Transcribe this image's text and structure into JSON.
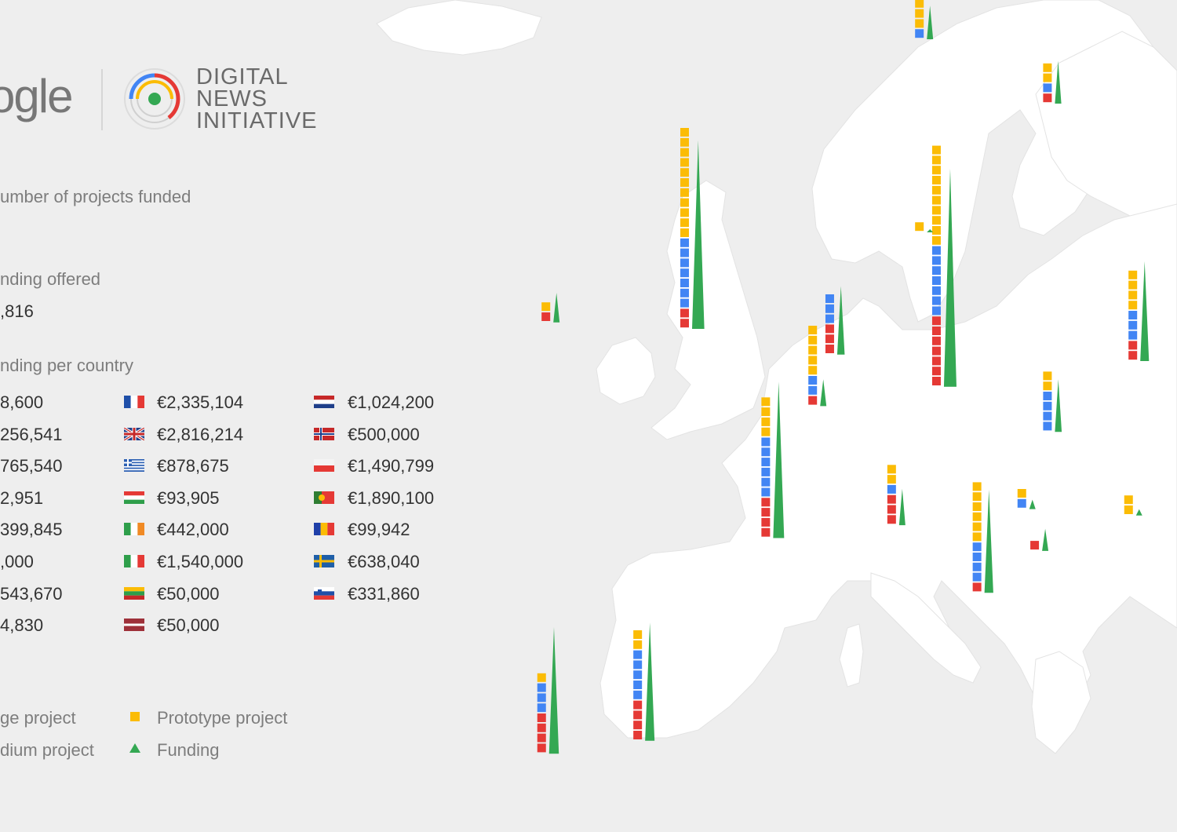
{
  "header": {
    "google_partial": "ogle",
    "dni_lines": [
      "DIGITAL",
      "NEWS",
      "INITIATIVE"
    ]
  },
  "labels": {
    "projects_funded": "umber of projects funded",
    "funding_offered": "nding offered",
    "funding_total_partial": ",816",
    "funding_per_country": "nding per country"
  },
  "left_column_partial": [
    "8,600",
    "256,541",
    "765,540",
    "2,951",
    "399,845",
    ",000",
    "543,670",
    "4,830"
  ],
  "countries": [
    {
      "flag": "france-flag",
      "amount": "€2,335,104",
      "col": 1,
      "row": 0
    },
    {
      "flag": "uk-flag",
      "amount": "€2,816,214",
      "col": 1,
      "row": 1
    },
    {
      "flag": "greece-flag",
      "amount": "€878,675",
      "col": 1,
      "row": 2
    },
    {
      "flag": "hungary-flag",
      "amount": "€93,905",
      "col": 1,
      "row": 3
    },
    {
      "flag": "ireland-flag",
      "amount": "€442,000",
      "col": 1,
      "row": 4
    },
    {
      "flag": "italy-flag",
      "amount": "€1,540,000",
      "col": 1,
      "row": 5
    },
    {
      "flag": "lithuania-flag",
      "amount": "€50,000",
      "col": 1,
      "row": 6
    },
    {
      "flag": "latvia-flag",
      "amount": "€50,000",
      "col": 1,
      "row": 7
    },
    {
      "flag": "netherlands-flag",
      "amount": "€1,024,200",
      "col": 2,
      "row": 0
    },
    {
      "flag": "norway-flag",
      "amount": "€500,000",
      "col": 2,
      "row": 1
    },
    {
      "flag": "poland-flag",
      "amount": "€1,490,799",
      "col": 2,
      "row": 2
    },
    {
      "flag": "portugal-flag",
      "amount": "€1,890,100",
      "col": 2,
      "row": 3
    },
    {
      "flag": "romania-flag",
      "amount": "€99,942",
      "col": 2,
      "row": 4
    },
    {
      "flag": "sweden-flag",
      "amount": "€638,040",
      "col": 2,
      "row": 5
    },
    {
      "flag": "slovenia-flag",
      "amount": "€331,860",
      "col": 2,
      "row": 6
    }
  ],
  "legend": {
    "large_partial": "ge project",
    "medium_partial": "dium project",
    "prototype": "Prototype project",
    "funding": "Funding"
  },
  "colors": {
    "large": "#e53935",
    "medium": "#4285f4",
    "prototype": "#fbbc05",
    "funding": "#34a853",
    "land": "#ffffff",
    "sea": "#eeeeee"
  },
  "map_markers": [
    {
      "country": "ireland",
      "lon": -8.0,
      "lat": 53.2,
      "large": 1,
      "medium": 0,
      "prototype": 1,
      "funding": 442000
    },
    {
      "country": "united-kingdom",
      "lon": -1.5,
      "lat": 53.0,
      "large": 2,
      "medium": 7,
      "prototype": 11,
      "funding": 2816214
    },
    {
      "country": "portugal",
      "lon": -8.2,
      "lat": 39.8,
      "large": 4,
      "medium": 3,
      "prototype": 1,
      "funding": 1890100
    },
    {
      "country": "spain",
      "lon": -3.7,
      "lat": 40.2,
      "large": 4,
      "medium": 5,
      "prototype": 2,
      "funding": 1765540
    },
    {
      "country": "france",
      "lon": 2.3,
      "lat": 46.5,
      "large": 4,
      "medium": 6,
      "prototype": 4,
      "funding": 2335104
    },
    {
      "country": "netherlands",
      "lon": 5.3,
      "lat": 52.2,
      "large": 3,
      "medium": 3,
      "prototype": 0,
      "funding": 1024200
    },
    {
      "country": "belgium",
      "lon": 4.5,
      "lat": 50.6,
      "large": 1,
      "medium": 2,
      "prototype": 5,
      "funding": 399845
    },
    {
      "country": "germany",
      "lon": 10.3,
      "lat": 51.2,
      "large": 7,
      "medium": 7,
      "prototype": 10,
      "funding": 3256541
    },
    {
      "country": "switzerland",
      "lon": 8.2,
      "lat": 46.9,
      "large": 3,
      "medium": 1,
      "prototype": 2,
      "funding": 543670
    },
    {
      "country": "italy",
      "lon": 12.2,
      "lat": 44.8,
      "large": 1,
      "medium": 4,
      "prototype": 6,
      "funding": 1540000
    },
    {
      "country": "denmark",
      "lon": 9.5,
      "lat": 56.0,
      "large": 0,
      "medium": 0,
      "prototype": 1,
      "funding": 24830
    },
    {
      "country": "norway",
      "lon": 9.5,
      "lat": 62.0,
      "large": 0,
      "medium": 1,
      "prototype": 6,
      "funding": 500000
    },
    {
      "country": "sweden",
      "lon": 15.5,
      "lat": 60.0,
      "large": 1,
      "medium": 1,
      "prototype": 2,
      "funding": 638040
    },
    {
      "country": "finland",
      "lon": 26.0,
      "lat": 62.5,
      "large": 1,
      "medium": 0,
      "prototype": 7,
      "funding": 878675
    },
    {
      "country": "poland",
      "lon": 19.5,
      "lat": 52.0,
      "large": 2,
      "medium": 3,
      "prototype": 4,
      "funding": 1490799
    },
    {
      "country": "czech-republic",
      "lon": 15.5,
      "lat": 49.8,
      "large": 0,
      "medium": 4,
      "prototype": 2,
      "funding": 782951
    },
    {
      "country": "austria",
      "lon": 14.3,
      "lat": 47.4,
      "large": 0,
      "medium": 1,
      "prototype": 1,
      "funding": 140000
    },
    {
      "country": "slovenia",
      "lon": 14.9,
      "lat": 46.1,
      "large": 1,
      "medium": 0,
      "prototype": 0,
      "funding": 331860
    },
    {
      "country": "hungary",
      "lon": 19.3,
      "lat": 47.2,
      "large": 0,
      "medium": 0,
      "prototype": 2,
      "funding": 93905
    },
    {
      "country": "romania",
      "lon": 24.9,
      "lat": 45.9,
      "large": 0,
      "medium": 0,
      "prototype": 2,
      "funding": 99942
    },
    {
      "country": "lithuania",
      "lon": 24.0,
      "lat": 55.4,
      "large": 0,
      "medium": 0,
      "prototype": 1,
      "funding": 50000
    },
    {
      "country": "latvia",
      "lon": 25.0,
      "lat": 57.0,
      "large": 0,
      "medium": 0,
      "prototype": 1,
      "funding": 50000
    },
    {
      "country": "greece",
      "lon": 22.5,
      "lat": 39.5,
      "large": 1,
      "medium": 1,
      "prototype": 0,
      "funding": 878675
    }
  ]
}
